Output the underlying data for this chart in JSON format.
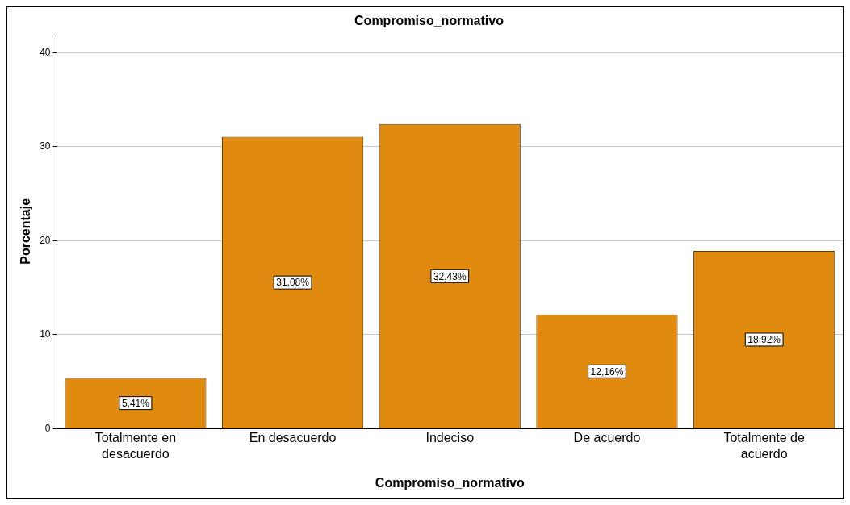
{
  "chart_data": {
    "type": "bar",
    "title": "Compromiso_normativo",
    "xlabel": "Compromiso_normativo",
    "ylabel": "Porcentaje",
    "categories": [
      "Totalmente en desacuerdo",
      "En desacuerdo",
      "Indeciso",
      "De acuerdo",
      "Totalmente de acuerdo"
    ],
    "values": [
      5.41,
      31.08,
      32.43,
      12.16,
      18.92
    ],
    "value_labels": [
      "5,41%",
      "31,08%",
      "32,43%",
      "12,16%",
      "18,92%"
    ],
    "color": "#e08a0f",
    "ylim": [
      0,
      42
    ],
    "yticks": [
      0,
      10,
      20,
      30,
      40
    ],
    "grid": "y",
    "legend": false
  }
}
